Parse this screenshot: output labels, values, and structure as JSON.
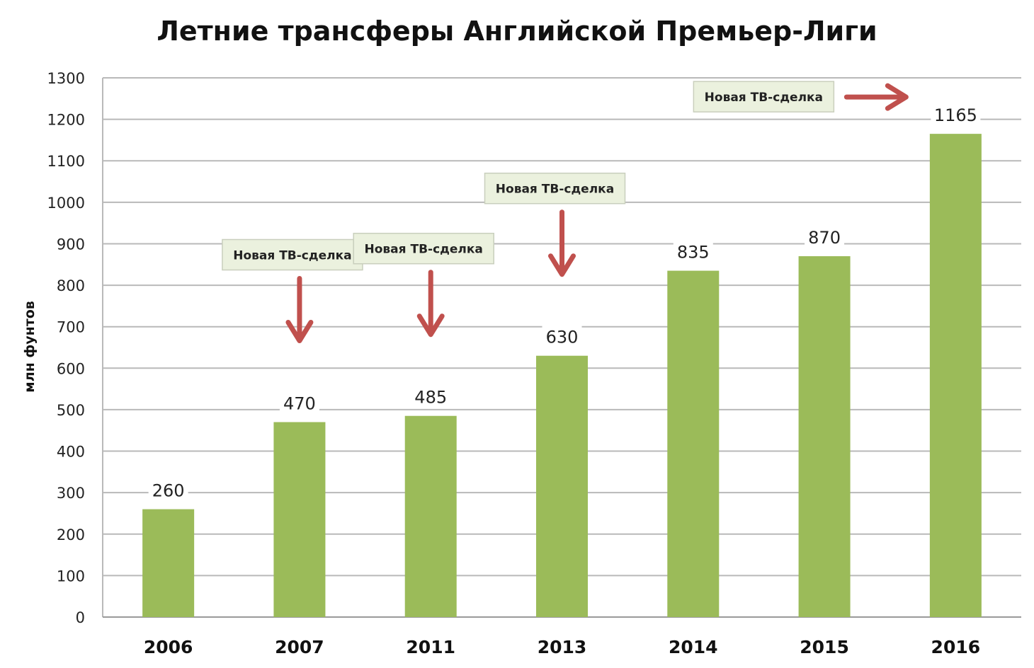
{
  "chart_data": {
    "type": "bar",
    "title": "Летние трансферы Английской Премьер-Лиги",
    "xlabel": "",
    "ylabel": "млн фунтов",
    "categories": [
      "2006",
      "2007",
      "2011",
      "2013",
      "2014",
      "2015",
      "2016"
    ],
    "values": [
      260,
      470,
      485,
      630,
      835,
      870,
      1165
    ],
    "ylim": [
      0,
      1300
    ],
    "yticks": [
      0,
      100,
      200,
      300,
      400,
      500,
      600,
      700,
      800,
      900,
      1000,
      1100,
      1200,
      1300
    ],
    "grid": true,
    "legend": "none",
    "bar_color": "#9BBB59",
    "arrow_color": "#C0504D",
    "annotation_fill": "#EBF1DE",
    "annotations": [
      {
        "text": "Новая ТВ-сделка",
        "category": "2007",
        "arrow": "down"
      },
      {
        "text": "Новая ТВ-сделка",
        "category": "2011",
        "arrow": "down"
      },
      {
        "text": "Новая ТВ-сделка",
        "category": "2013",
        "arrow": "down"
      },
      {
        "text": "Новая ТВ-сделка",
        "category": "2016",
        "arrow": "right"
      }
    ]
  }
}
